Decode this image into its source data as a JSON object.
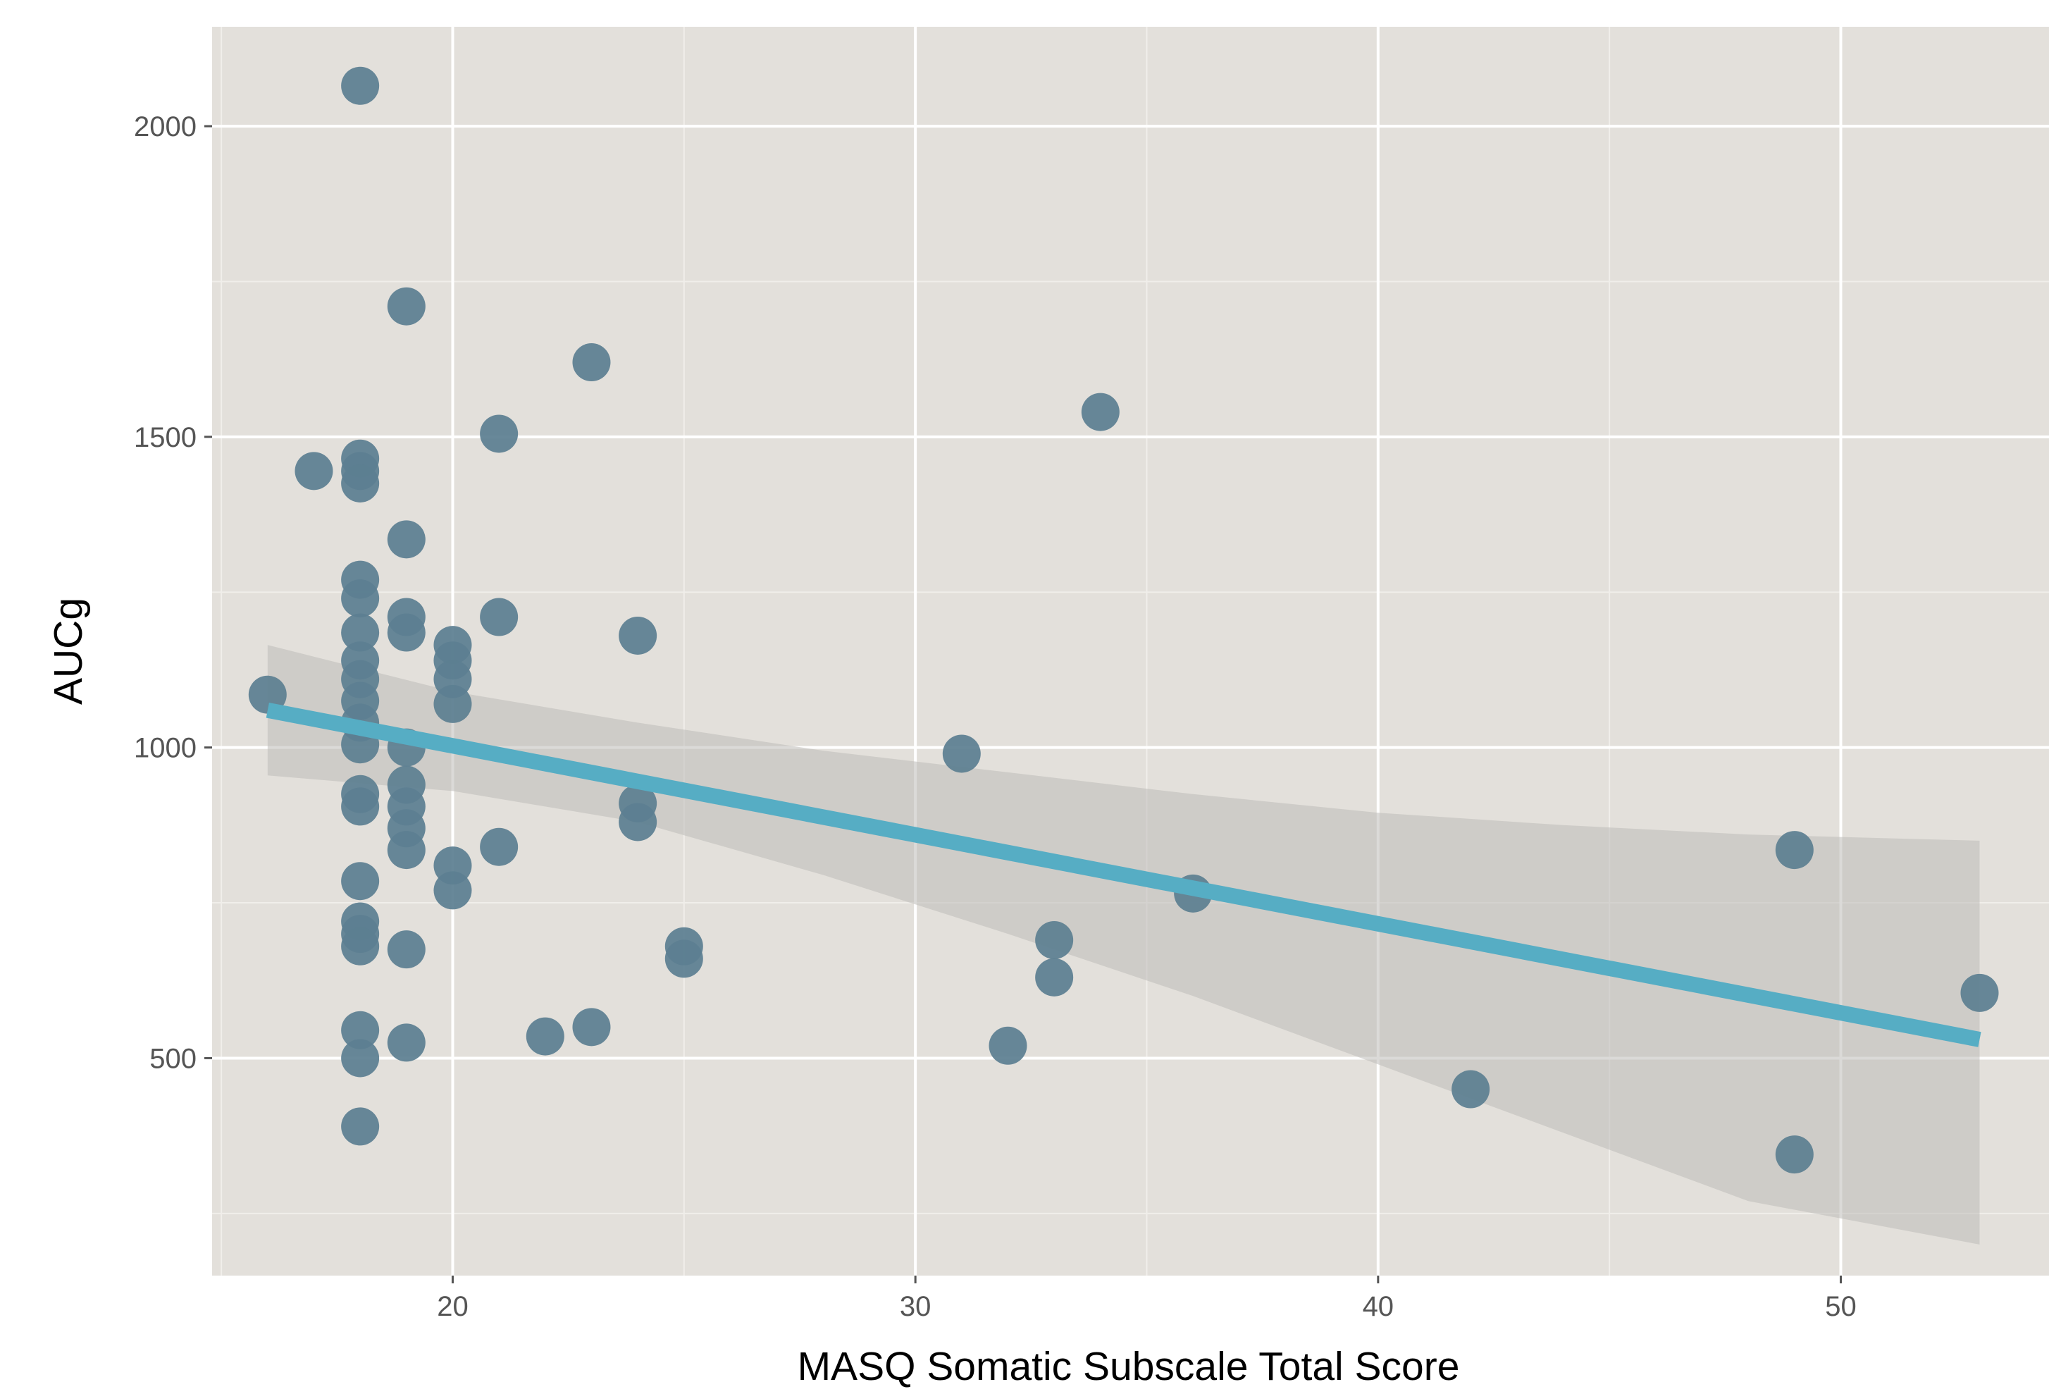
{
  "chart_data": {
    "type": "scatter",
    "title": "",
    "xlabel": "MASQ Somatic Subscale Total Score",
    "ylabel": "AUCg",
    "xlim": [
      14.8,
      54.5
    ],
    "ylim": [
      150,
      2160
    ],
    "x_ticks": [
      20,
      30,
      40,
      50
    ],
    "x_tick_labels": [
      "20",
      "30",
      "40",
      "50"
    ],
    "x_minor_ticks": [
      15,
      25,
      35,
      45
    ],
    "y_ticks": [
      500,
      1000,
      1500,
      2000
    ],
    "y_tick_labels": [
      "500",
      "1000",
      "1500",
      "2000"
    ],
    "y_minor_ticks": [
      250,
      750,
      1250,
      1750
    ],
    "grid": true,
    "colors": {
      "panel_background": "#e3e0db",
      "grid_major": "#ffffff",
      "grid_minor": "#f0eeea",
      "points": "#5d7f91",
      "regression_line": "#56adc4",
      "confidence_band": "#bdbcb8",
      "tick_text": "#555555",
      "axis_title": "#000000"
    },
    "series": [
      {
        "points": [
          {
            "x": 16,
            "y": 1085
          },
          {
            "x": 17,
            "y": 1445
          },
          {
            "x": 18,
            "y": 2065
          },
          {
            "x": 18,
            "y": 1465
          },
          {
            "x": 18,
            "y": 1445
          },
          {
            "x": 18,
            "y": 1425
          },
          {
            "x": 18,
            "y": 1270
          },
          {
            "x": 18,
            "y": 1240
          },
          {
            "x": 18,
            "y": 1185
          },
          {
            "x": 18,
            "y": 1140
          },
          {
            "x": 18,
            "y": 1110
          },
          {
            "x": 18,
            "y": 1075
          },
          {
            "x": 18,
            "y": 1040
          },
          {
            "x": 18,
            "y": 1005
          },
          {
            "x": 18,
            "y": 925
          },
          {
            "x": 18,
            "y": 905
          },
          {
            "x": 18,
            "y": 785
          },
          {
            "x": 18,
            "y": 720
          },
          {
            "x": 18,
            "y": 700
          },
          {
            "x": 18,
            "y": 680
          },
          {
            "x": 18,
            "y": 545
          },
          {
            "x": 18,
            "y": 500
          },
          {
            "x": 18,
            "y": 390
          },
          {
            "x": 19,
            "y": 1710
          },
          {
            "x": 19,
            "y": 1335
          },
          {
            "x": 19,
            "y": 1210
          },
          {
            "x": 19,
            "y": 1185
          },
          {
            "x": 19,
            "y": 1000
          },
          {
            "x": 19,
            "y": 940
          },
          {
            "x": 19,
            "y": 905
          },
          {
            "x": 19,
            "y": 870
          },
          {
            "x": 19,
            "y": 835
          },
          {
            "x": 19,
            "y": 675
          },
          {
            "x": 19,
            "y": 525
          },
          {
            "x": 20,
            "y": 1165
          },
          {
            "x": 20,
            "y": 1140
          },
          {
            "x": 20,
            "y": 1110
          },
          {
            "x": 20,
            "y": 1070
          },
          {
            "x": 20,
            "y": 810
          },
          {
            "x": 20,
            "y": 770
          },
          {
            "x": 21,
            "y": 1505
          },
          {
            "x": 21,
            "y": 1210
          },
          {
            "x": 21,
            "y": 840
          },
          {
            "x": 22,
            "y": 535
          },
          {
            "x": 23,
            "y": 1620
          },
          {
            "x": 23,
            "y": 550
          },
          {
            "x": 24,
            "y": 1180
          },
          {
            "x": 24,
            "y": 910
          },
          {
            "x": 24,
            "y": 880
          },
          {
            "x": 25,
            "y": 680
          },
          {
            "x": 25,
            "y": 660
          },
          {
            "x": 31,
            "y": 990
          },
          {
            "x": 32,
            "y": 520
          },
          {
            "x": 33,
            "y": 690
          },
          {
            "x": 33,
            "y": 630
          },
          {
            "x": 34,
            "y": 1540
          },
          {
            "x": 36,
            "y": 765
          },
          {
            "x": 42,
            "y": 450
          },
          {
            "x": 49,
            "y": 835
          },
          {
            "x": 49,
            "y": 345
          },
          {
            "x": 53,
            "y": 605
          }
        ]
      }
    ],
    "regression_line": {
      "x": [
        16,
        53
      ],
      "y": [
        1060,
        530
      ]
    },
    "confidence_band": {
      "x": [
        16,
        20,
        24,
        28,
        32,
        36,
        40,
        44,
        48,
        53
      ],
      "lower": [
        955,
        930,
        880,
        795,
        700,
        600,
        490,
        380,
        270,
        200
      ],
      "upper": [
        1165,
        1090,
        1040,
        995,
        960,
        925,
        895,
        875,
        860,
        850
      ]
    }
  }
}
